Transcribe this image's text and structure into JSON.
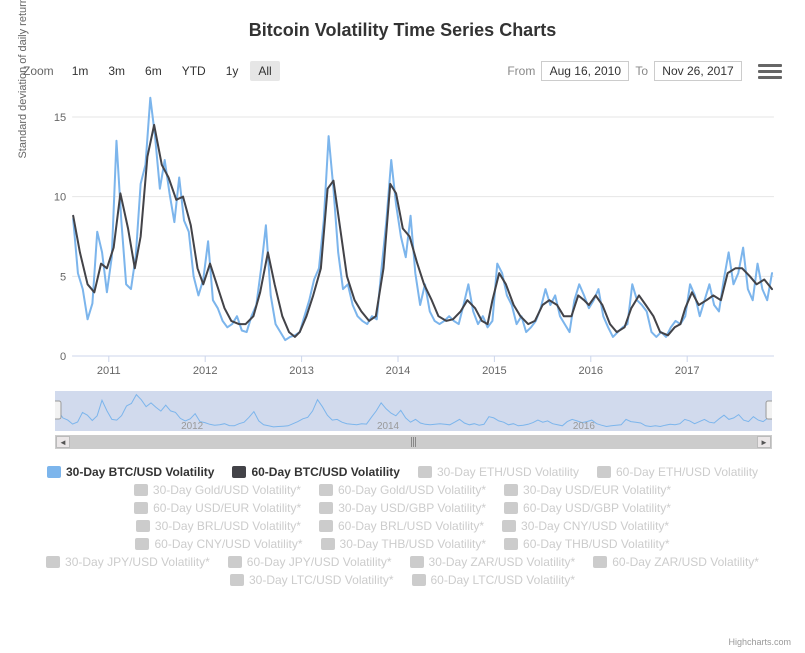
{
  "title": "Bitcoin Volatility Time Series Charts",
  "controls": {
    "zoom_label": "Zoom",
    "zoom_buttons": [
      "1m",
      "3m",
      "6m",
      "YTD",
      "1y",
      "All"
    ],
    "zoom_selected": "All",
    "from_label": "From",
    "to_label": "To",
    "from_date": "Aug 16, 2010",
    "to_date": "Nov 26, 2017"
  },
  "chart": {
    "type": "line",
    "ylabel": "Standard deviation of daily returns",
    "ylim": [
      0,
      16
    ],
    "yticks": [
      0,
      5,
      10,
      15
    ],
    "xticks": [
      2011,
      2012,
      2013,
      2014,
      2015,
      2016,
      2017
    ],
    "xrange": [
      2010.62,
      2017.9
    ],
    "background_color": "#ffffff",
    "grid_color": "#e6e6e6",
    "tick_color": "#ccd6eb",
    "series": [
      {
        "name": "30-Day BTC/USD Volatility",
        "color": "#7cb5ec",
        "active": true,
        "data": [
          [
            2010.63,
            8.6
          ],
          [
            2010.68,
            5.2
          ],
          [
            2010.73,
            4.2
          ],
          [
            2010.78,
            2.3
          ],
          [
            2010.83,
            3.3
          ],
          [
            2010.88,
            7.8
          ],
          [
            2010.93,
            6.5
          ],
          [
            2010.98,
            4.0
          ],
          [
            2011.03,
            6.2
          ],
          [
            2011.08,
            13.5
          ],
          [
            2011.13,
            8.5
          ],
          [
            2011.18,
            4.5
          ],
          [
            2011.23,
            4.2
          ],
          [
            2011.28,
            6.3
          ],
          [
            2011.33,
            10.8
          ],
          [
            2011.38,
            12.0
          ],
          [
            2011.43,
            16.2
          ],
          [
            2011.48,
            13.8
          ],
          [
            2011.53,
            10.5
          ],
          [
            2011.58,
            12.3
          ],
          [
            2011.63,
            10.2
          ],
          [
            2011.68,
            8.4
          ],
          [
            2011.73,
            11.2
          ],
          [
            2011.78,
            8.5
          ],
          [
            2011.83,
            7.8
          ],
          [
            2011.88,
            5.0
          ],
          [
            2011.93,
            3.8
          ],
          [
            2011.98,
            4.8
          ],
          [
            2012.03,
            7.2
          ],
          [
            2012.08,
            3.5
          ],
          [
            2012.13,
            3.0
          ],
          [
            2012.18,
            2.2
          ],
          [
            2012.23,
            1.8
          ],
          [
            2012.28,
            2.0
          ],
          [
            2012.33,
            2.5
          ],
          [
            2012.38,
            1.6
          ],
          [
            2012.43,
            1.5
          ],
          [
            2012.48,
            2.5
          ],
          [
            2012.53,
            3.2
          ],
          [
            2012.58,
            5.5
          ],
          [
            2012.63,
            8.2
          ],
          [
            2012.68,
            3.8
          ],
          [
            2012.73,
            2.0
          ],
          [
            2012.78,
            1.5
          ],
          [
            2012.83,
            1.0
          ],
          [
            2012.88,
            1.2
          ],
          [
            2012.93,
            1.3
          ],
          [
            2012.98,
            1.5
          ],
          [
            2013.03,
            2.5
          ],
          [
            2013.08,
            3.5
          ],
          [
            2013.13,
            4.8
          ],
          [
            2013.18,
            5.5
          ],
          [
            2013.23,
            8.5
          ],
          [
            2013.28,
            13.8
          ],
          [
            2013.33,
            10.5
          ],
          [
            2013.38,
            6.5
          ],
          [
            2013.43,
            4.2
          ],
          [
            2013.48,
            4.5
          ],
          [
            2013.53,
            3.2
          ],
          [
            2013.58,
            2.5
          ],
          [
            2013.63,
            2.2
          ],
          [
            2013.68,
            2.0
          ],
          [
            2013.73,
            2.5
          ],
          [
            2013.78,
            2.3
          ],
          [
            2013.83,
            5.5
          ],
          [
            2013.88,
            8.5
          ],
          [
            2013.93,
            12.3
          ],
          [
            2013.98,
            9.5
          ],
          [
            2014.03,
            7.5
          ],
          [
            2014.08,
            6.2
          ],
          [
            2014.13,
            8.8
          ],
          [
            2014.18,
            5.2
          ],
          [
            2014.23,
            3.2
          ],
          [
            2014.28,
            4.5
          ],
          [
            2014.33,
            2.8
          ],
          [
            2014.38,
            2.2
          ],
          [
            2014.43,
            2.0
          ],
          [
            2014.48,
            2.2
          ],
          [
            2014.53,
            2.5
          ],
          [
            2014.58,
            2.2
          ],
          [
            2014.63,
            2.0
          ],
          [
            2014.68,
            3.2
          ],
          [
            2014.73,
            4.5
          ],
          [
            2014.78,
            2.8
          ],
          [
            2014.83,
            2.0
          ],
          [
            2014.88,
            2.5
          ],
          [
            2014.93,
            1.8
          ],
          [
            2014.98,
            2.2
          ],
          [
            2015.03,
            5.8
          ],
          [
            2015.08,
            5.2
          ],
          [
            2015.13,
            3.8
          ],
          [
            2015.18,
            3.2
          ],
          [
            2015.23,
            2.0
          ],
          [
            2015.28,
            2.5
          ],
          [
            2015.33,
            1.5
          ],
          [
            2015.38,
            1.8
          ],
          [
            2015.43,
            2.2
          ],
          [
            2015.48,
            3.0
          ],
          [
            2015.53,
            4.2
          ],
          [
            2015.58,
            3.2
          ],
          [
            2015.63,
            3.8
          ],
          [
            2015.68,
            2.5
          ],
          [
            2015.73,
            2.0
          ],
          [
            2015.78,
            1.5
          ],
          [
            2015.83,
            3.5
          ],
          [
            2015.88,
            4.5
          ],
          [
            2015.93,
            3.8
          ],
          [
            2015.98,
            3.0
          ],
          [
            2016.03,
            3.5
          ],
          [
            2016.08,
            4.2
          ],
          [
            2016.13,
            2.5
          ],
          [
            2016.18,
            1.8
          ],
          [
            2016.23,
            1.2
          ],
          [
            2016.28,
            1.5
          ],
          [
            2016.33,
            1.8
          ],
          [
            2016.38,
            2.0
          ],
          [
            2016.43,
            4.5
          ],
          [
            2016.48,
            3.5
          ],
          [
            2016.53,
            3.2
          ],
          [
            2016.58,
            2.8
          ],
          [
            2016.63,
            1.5
          ],
          [
            2016.68,
            1.2
          ],
          [
            2016.73,
            1.5
          ],
          [
            2016.78,
            1.2
          ],
          [
            2016.83,
            1.8
          ],
          [
            2016.88,
            2.2
          ],
          [
            2016.93,
            2.0
          ],
          [
            2016.98,
            2.5
          ],
          [
            2017.03,
            4.5
          ],
          [
            2017.08,
            3.8
          ],
          [
            2017.13,
            2.5
          ],
          [
            2017.18,
            3.5
          ],
          [
            2017.23,
            4.5
          ],
          [
            2017.28,
            3.2
          ],
          [
            2017.33,
            2.8
          ],
          [
            2017.38,
            4.8
          ],
          [
            2017.43,
            6.5
          ],
          [
            2017.48,
            4.5
          ],
          [
            2017.53,
            5.2
          ],
          [
            2017.58,
            6.8
          ],
          [
            2017.63,
            4.2
          ],
          [
            2017.68,
            3.5
          ],
          [
            2017.73,
            5.8
          ],
          [
            2017.78,
            4.2
          ],
          [
            2017.83,
            3.5
          ],
          [
            2017.88,
            5.2
          ]
        ]
      },
      {
        "name": "60-Day BTC/USD Volatility",
        "color": "#434348",
        "active": true,
        "data": [
          [
            2010.63,
            8.8
          ],
          [
            2010.7,
            6.5
          ],
          [
            2010.78,
            4.5
          ],
          [
            2010.85,
            4.0
          ],
          [
            2010.92,
            5.8
          ],
          [
            2010.98,
            5.5
          ],
          [
            2011.05,
            6.8
          ],
          [
            2011.12,
            10.2
          ],
          [
            2011.2,
            8.0
          ],
          [
            2011.27,
            5.5
          ],
          [
            2011.33,
            7.5
          ],
          [
            2011.4,
            12.5
          ],
          [
            2011.47,
            14.5
          ],
          [
            2011.55,
            12.0
          ],
          [
            2011.62,
            11.2
          ],
          [
            2011.7,
            9.8
          ],
          [
            2011.77,
            10.0
          ],
          [
            2011.85,
            8.2
          ],
          [
            2011.92,
            5.5
          ],
          [
            2011.98,
            4.5
          ],
          [
            2012.05,
            5.8
          ],
          [
            2012.12,
            4.5
          ],
          [
            2012.2,
            3.0
          ],
          [
            2012.27,
            2.2
          ],
          [
            2012.35,
            2.0
          ],
          [
            2012.42,
            2.0
          ],
          [
            2012.5,
            2.5
          ],
          [
            2012.57,
            4.0
          ],
          [
            2012.65,
            6.5
          ],
          [
            2012.72,
            4.5
          ],
          [
            2012.8,
            2.5
          ],
          [
            2012.87,
            1.5
          ],
          [
            2012.93,
            1.2
          ],
          [
            2012.98,
            1.5
          ],
          [
            2013.05,
            2.5
          ],
          [
            2013.12,
            3.8
          ],
          [
            2013.2,
            5.5
          ],
          [
            2013.27,
            10.5
          ],
          [
            2013.33,
            11.0
          ],
          [
            2013.4,
            8.0
          ],
          [
            2013.47,
            5.0
          ],
          [
            2013.55,
            3.5
          ],
          [
            2013.62,
            2.8
          ],
          [
            2013.7,
            2.2
          ],
          [
            2013.77,
            2.5
          ],
          [
            2013.85,
            5.5
          ],
          [
            2013.92,
            10.8
          ],
          [
            2013.98,
            10.2
          ],
          [
            2014.05,
            8.0
          ],
          [
            2014.12,
            7.5
          ],
          [
            2014.2,
            5.8
          ],
          [
            2014.27,
            4.5
          ],
          [
            2014.35,
            3.5
          ],
          [
            2014.42,
            2.5
          ],
          [
            2014.5,
            2.2
          ],
          [
            2014.57,
            2.3
          ],
          [
            2014.65,
            2.8
          ],
          [
            2014.72,
            3.5
          ],
          [
            2014.8,
            3.0
          ],
          [
            2014.87,
            2.2
          ],
          [
            2014.93,
            2.0
          ],
          [
            2014.98,
            3.5
          ],
          [
            2015.05,
            5.2
          ],
          [
            2015.12,
            4.5
          ],
          [
            2015.2,
            3.2
          ],
          [
            2015.27,
            2.5
          ],
          [
            2015.35,
            2.0
          ],
          [
            2015.42,
            2.2
          ],
          [
            2015.5,
            3.2
          ],
          [
            2015.57,
            3.5
          ],
          [
            2015.65,
            3.2
          ],
          [
            2015.72,
            2.5
          ],
          [
            2015.8,
            2.5
          ],
          [
            2015.87,
            3.8
          ],
          [
            2015.93,
            3.5
          ],
          [
            2015.98,
            3.2
          ],
          [
            2016.05,
            3.8
          ],
          [
            2016.12,
            3.2
          ],
          [
            2016.2,
            2.0
          ],
          [
            2016.27,
            1.5
          ],
          [
            2016.35,
            1.8
          ],
          [
            2016.42,
            3.0
          ],
          [
            2016.5,
            3.8
          ],
          [
            2016.57,
            3.2
          ],
          [
            2016.65,
            2.5
          ],
          [
            2016.72,
            1.5
          ],
          [
            2016.8,
            1.3
          ],
          [
            2016.87,
            1.8
          ],
          [
            2016.93,
            2.0
          ],
          [
            2016.98,
            3.0
          ],
          [
            2017.05,
            4.0
          ],
          [
            2017.12,
            3.2
          ],
          [
            2017.2,
            3.5
          ],
          [
            2017.27,
            3.8
          ],
          [
            2017.35,
            3.5
          ],
          [
            2017.42,
            5.2
          ],
          [
            2017.5,
            5.5
          ],
          [
            2017.57,
            5.5
          ],
          [
            2017.65,
            5.0
          ],
          [
            2017.72,
            4.5
          ],
          [
            2017.8,
            4.8
          ],
          [
            2017.88,
            4.2
          ]
        ]
      }
    ]
  },
  "navigator": {
    "years": [
      2012,
      2014,
      2016
    ],
    "color": "#7cb5ec",
    "mask_color": "rgba(102,133,194,0.3)"
  },
  "legend": {
    "items": [
      {
        "label": "30-Day BTC/USD Volatility",
        "color": "#7cb5ec",
        "active": true
      },
      {
        "label": "60-Day BTC/USD Volatility",
        "color": "#434348",
        "active": true
      },
      {
        "label": "30-Day ETH/USD Volatility",
        "color": "#cccccc",
        "active": false
      },
      {
        "label": "60-Day ETH/USD Volatility",
        "color": "#cccccc",
        "active": false
      },
      {
        "label": "30-Day Gold/USD Volatility*",
        "color": "#cccccc",
        "active": false
      },
      {
        "label": "60-Day Gold/USD Volatility*",
        "color": "#cccccc",
        "active": false
      },
      {
        "label": "30-Day USD/EUR Volatility*",
        "color": "#cccccc",
        "active": false
      },
      {
        "label": "60-Day USD/EUR Volatility*",
        "color": "#cccccc",
        "active": false
      },
      {
        "label": "30-Day USD/GBP Volatility*",
        "color": "#cccccc",
        "active": false
      },
      {
        "label": "60-Day USD/GBP Volatility*",
        "color": "#cccccc",
        "active": false
      },
      {
        "label": "30-Day BRL/USD Volatility*",
        "color": "#cccccc",
        "active": false
      },
      {
        "label": "60-Day BRL/USD Volatility*",
        "color": "#cccccc",
        "active": false
      },
      {
        "label": "30-Day CNY/USD Volatility*",
        "color": "#cccccc",
        "active": false
      },
      {
        "label": "60-Day CNY/USD Volatility*",
        "color": "#cccccc",
        "active": false
      },
      {
        "label": "30-Day THB/USD Volatility*",
        "color": "#cccccc",
        "active": false
      },
      {
        "label": "60-Day THB/USD Volatility*",
        "color": "#cccccc",
        "active": false
      },
      {
        "label": "30-Day JPY/USD Volatility*",
        "color": "#cccccc",
        "active": false
      },
      {
        "label": "60-Day JPY/USD Volatility*",
        "color": "#cccccc",
        "active": false
      },
      {
        "label": "30-Day ZAR/USD Volatility*",
        "color": "#cccccc",
        "active": false
      },
      {
        "label": "60-Day ZAR/USD Volatility*",
        "color": "#cccccc",
        "active": false
      },
      {
        "label": "30-Day LTC/USD Volatility*",
        "color": "#cccccc",
        "active": false
      },
      {
        "label": "60-Day LTC/USD Volatility*",
        "color": "#cccccc",
        "active": false
      }
    ]
  },
  "credits": "Highcharts.com"
}
